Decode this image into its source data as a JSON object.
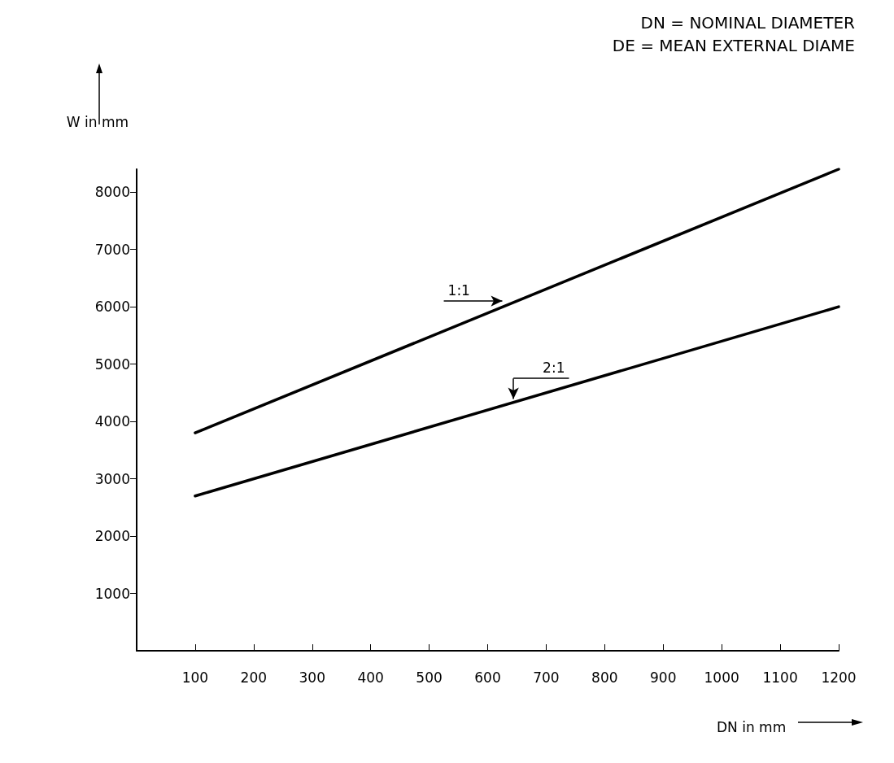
{
  "chart_data": {
    "type": "line",
    "xlabel": "DN in mm",
    "ylabel": "W in mm",
    "annotations": [
      "DN = NOMINAL DIAMETER",
      "DE = MEAN EXTERNAL DIAME",
      {
        "text": "1:1",
        "x": 630,
        "y": 6000
      },
      {
        "text": "2:1",
        "x": 644,
        "y": 4300
      }
    ],
    "xlim": [
      0,
      1200
    ],
    "xticks": [
      100,
      200,
      300,
      400,
      500,
      600,
      700,
      800,
      900,
      1000,
      1100,
      1200
    ],
    "ylim": [
      0,
      8400
    ],
    "yticks": [
      1000,
      2000,
      3000,
      4000,
      5000,
      6000,
      7000,
      8000
    ],
    "grid": false,
    "marker": "none",
    "line_style": "solid",
    "x": [
      100,
      1200
    ],
    "series": [
      {
        "color": "#000000",
        "values": [
          3800,
          8400
        ]
      },
      {
        "color": "#000000",
        "values": [
          2700,
          6000
        ]
      }
    ]
  }
}
